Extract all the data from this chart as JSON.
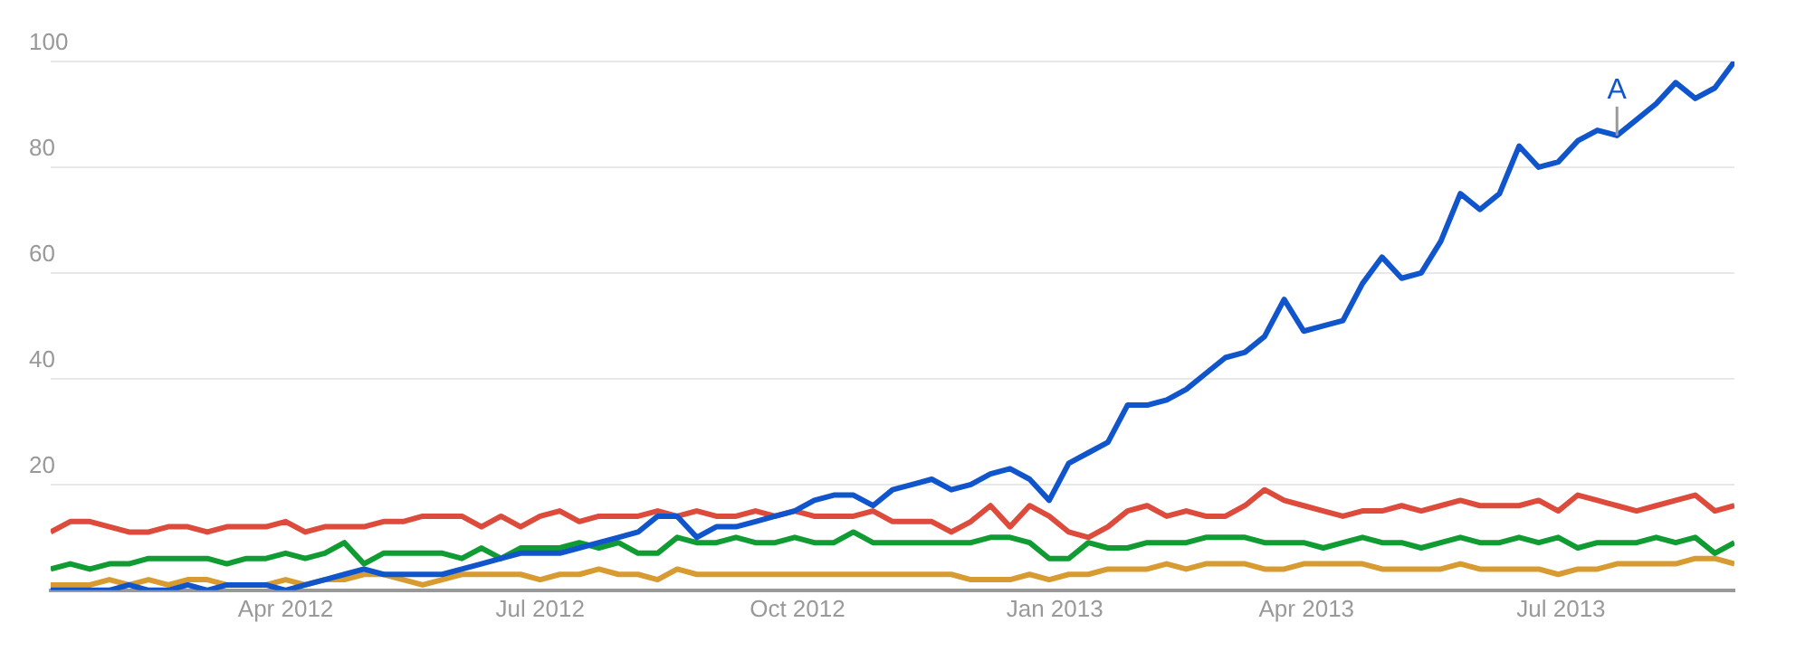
{
  "chart_data": {
    "type": "line",
    "x": [
      "2012-01-08",
      "2012-01-15",
      "2012-01-22",
      "2012-01-29",
      "2012-02-05",
      "2012-02-12",
      "2012-02-19",
      "2012-02-26",
      "2012-03-04",
      "2012-03-11",
      "2012-03-18",
      "2012-03-25",
      "2012-04-01",
      "2012-04-08",
      "2012-04-15",
      "2012-04-22",
      "2012-04-29",
      "2012-05-06",
      "2012-05-13",
      "2012-05-20",
      "2012-05-27",
      "2012-06-03",
      "2012-06-10",
      "2012-06-17",
      "2012-06-24",
      "2012-07-01",
      "2012-07-08",
      "2012-07-15",
      "2012-07-22",
      "2012-07-29",
      "2012-08-05",
      "2012-08-12",
      "2012-08-19",
      "2012-08-26",
      "2012-09-02",
      "2012-09-09",
      "2012-09-16",
      "2012-09-23",
      "2012-09-30",
      "2012-10-07",
      "2012-10-14",
      "2012-10-21",
      "2012-10-28",
      "2012-11-04",
      "2012-11-11",
      "2012-11-18",
      "2012-11-25",
      "2012-12-02",
      "2012-12-09",
      "2012-12-16",
      "2012-12-23",
      "2012-12-30",
      "2013-01-06",
      "2013-01-13",
      "2013-01-20",
      "2013-01-27",
      "2013-02-03",
      "2013-02-10",
      "2013-02-17",
      "2013-02-24",
      "2013-03-03",
      "2013-03-10",
      "2013-03-17",
      "2013-03-24",
      "2013-03-31",
      "2013-04-07",
      "2013-04-14",
      "2013-04-21",
      "2013-04-28",
      "2013-05-05",
      "2013-05-12",
      "2013-05-19",
      "2013-05-26",
      "2013-06-02",
      "2013-06-09",
      "2013-06-16",
      "2013-06-23",
      "2013-06-30",
      "2013-07-07",
      "2013-07-14",
      "2013-07-21",
      "2013-07-28",
      "2013-08-04",
      "2013-08-11",
      "2013-08-18",
      "2013-08-25",
      "2013-09-01"
    ],
    "series": [
      {
        "color": "#1155cc",
        "values": [
          0,
          0,
          0,
          0,
          1,
          0,
          0,
          1,
          0,
          1,
          1,
          1,
          0,
          1,
          2,
          3,
          4,
          3,
          3,
          3,
          3,
          4,
          5,
          6,
          7,
          7,
          7,
          8,
          9,
          10,
          11,
          14,
          14,
          10,
          12,
          12,
          13,
          14,
          15,
          17,
          18,
          18,
          16,
          19,
          20,
          21,
          19,
          20,
          22,
          23,
          21,
          17,
          24,
          26,
          28,
          35,
          35,
          36,
          38,
          41,
          44,
          45,
          48,
          55,
          49,
          50,
          51,
          58,
          63,
          59,
          60,
          66,
          75,
          72,
          75,
          84,
          80,
          81,
          85,
          87,
          86,
          89,
          92,
          96,
          93,
          95,
          100
        ]
      },
      {
        "color": "#dc4b3c",
        "values": [
          11,
          13,
          13,
          12,
          11,
          11,
          12,
          12,
          11,
          12,
          12,
          12,
          13,
          11,
          12,
          12,
          12,
          13,
          13,
          14,
          14,
          14,
          12,
          14,
          12,
          14,
          15,
          13,
          14,
          14,
          14,
          15,
          14,
          15,
          14,
          14,
          15,
          14,
          15,
          14,
          14,
          14,
          15,
          13,
          13,
          13,
          11,
          13,
          16,
          12,
          16,
          14,
          11,
          10,
          12,
          15,
          16,
          14,
          15,
          14,
          14,
          16,
          19,
          17,
          16,
          15,
          14,
          15,
          15,
          16,
          15,
          16,
          17,
          16,
          16,
          16,
          17,
          15,
          18,
          17,
          16,
          15,
          16,
          17,
          18,
          15,
          16
        ]
      },
      {
        "color": "#109c32",
        "values": [
          4,
          5,
          4,
          5,
          5,
          6,
          6,
          6,
          6,
          5,
          6,
          6,
          7,
          6,
          7,
          9,
          5,
          7,
          7,
          7,
          7,
          6,
          8,
          6,
          8,
          8,
          8,
          9,
          8,
          9,
          7,
          7,
          10,
          9,
          9,
          10,
          9,
          9,
          10,
          9,
          9,
          11,
          9,
          9,
          9,
          9,
          9,
          9,
          10,
          10,
          9,
          6,
          6,
          9,
          8,
          8,
          9,
          9,
          9,
          10,
          10,
          10,
          9,
          9,
          9,
          8,
          9,
          10,
          9,
          9,
          8,
          9,
          10,
          9,
          9,
          10,
          9,
          10,
          8,
          9,
          9,
          9,
          10,
          9,
          10,
          7,
          9
        ]
      },
      {
        "color": "#d79b32",
        "values": [
          1,
          1,
          1,
          2,
          1,
          2,
          1,
          2,
          2,
          1,
          1,
          1,
          2,
          1,
          2,
          2,
          3,
          3,
          2,
          1,
          2,
          3,
          3,
          3,
          3,
          2,
          3,
          3,
          4,
          3,
          3,
          2,
          4,
          3,
          3,
          3,
          3,
          3,
          3,
          3,
          3,
          3,
          3,
          3,
          3,
          3,
          3,
          2,
          2,
          2,
          3,
          2,
          3,
          3,
          4,
          4,
          4,
          5,
          4,
          5,
          5,
          5,
          4,
          4,
          5,
          5,
          5,
          5,
          4,
          4,
          4,
          4,
          5,
          4,
          4,
          4,
          4,
          3,
          4,
          4,
          5,
          5,
          5,
          5,
          6,
          6,
          5
        ]
      }
    ],
    "xlim": [
      "2012-01-08",
      "2013-09-01"
    ],
    "xticks": [
      {
        "value": "2012-04-01",
        "label": "Apr 2012"
      },
      {
        "value": "2012-07-01",
        "label": "Jul 2012"
      },
      {
        "value": "2012-10-01",
        "label": "Oct 2012"
      },
      {
        "value": "2013-01-01",
        "label": "Jan 2013"
      },
      {
        "value": "2013-04-01",
        "label": "Apr 2013"
      },
      {
        "value": "2013-07-01",
        "label": "Jul 2013"
      }
    ],
    "ylim": [
      0,
      100
    ],
    "yticks": [
      {
        "value": 0,
        "label": null
      },
      20,
      40,
      60,
      80,
      100
    ],
    "grid": "y",
    "legend": false,
    "marker": "none",
    "line_style": "solid",
    "annotations": [
      {
        "text": "A",
        "x": "2013-07-21",
        "y": 86
      }
    ]
  }
}
